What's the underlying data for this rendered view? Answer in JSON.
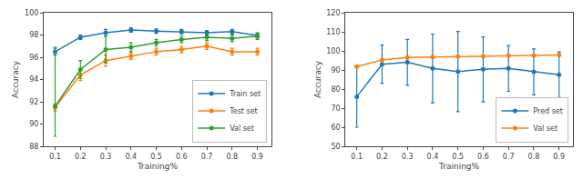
{
  "chart_data": [
    {
      "type": "line",
      "x": [
        0.1,
        0.2,
        0.3,
        0.4,
        0.5,
        0.6,
        0.7,
        0.8,
        0.9
      ],
      "xlabel": "Training%",
      "ylabel": "Accuracy",
      "xlim": [
        0.055,
        0.955
      ],
      "xticks": [
        0.1,
        0.2,
        0.3,
        0.4,
        0.5,
        0.6,
        0.7,
        0.8,
        0.9
      ],
      "ylim": [
        88,
        100
      ],
      "yticks": [
        88,
        90,
        92,
        94,
        96,
        98,
        100
      ],
      "grid": false,
      "legend": "lower right",
      "series": [
        {
          "name": "Train set",
          "color": "#1f77b4",
          "marker": "circle",
          "values": [
            96.5,
            97.8,
            98.2,
            98.45,
            98.35,
            98.3,
            98.2,
            98.3,
            97.95
          ],
          "errors": [
            0.3,
            0.2,
            0.3,
            0.2,
            0.2,
            0.2,
            0.2,
            0.2,
            0.2
          ]
        },
        {
          "name": "Test set",
          "color": "#ff7f0e",
          "marker": "circle",
          "values": [
            91.5,
            94.4,
            95.7,
            96.1,
            96.5,
            96.7,
            97.0,
            96.5,
            96.5
          ],
          "errors": [
            0.3,
            0.5,
            0.5,
            0.3,
            0.3,
            0.3,
            0.3,
            0.3,
            0.3
          ]
        },
        {
          "name": "Val set",
          "color": "#2ca02c",
          "marker": "circle",
          "values": [
            91.6,
            94.9,
            96.7,
            96.9,
            97.3,
            97.6,
            97.8,
            97.7,
            97.9
          ],
          "errors_up": [
            5.3,
            0.8,
            1.2,
            0.4,
            0.3,
            0.3,
            0.3,
            0.3,
            0.3
          ],
          "errors_down": [
            2.7,
            0.8,
            1.2,
            0.4,
            0.3,
            0.3,
            0.3,
            0.3,
            0.3
          ]
        }
      ]
    },
    {
      "type": "line",
      "x": [
        0.1,
        0.2,
        0.3,
        0.4,
        0.5,
        0.6,
        0.7,
        0.8,
        0.9
      ],
      "xlabel": "Training%",
      "ylabel": "Accuracy",
      "xlim": [
        0.055,
        0.955
      ],
      "xticks": [
        0.1,
        0.2,
        0.3,
        0.4,
        0.5,
        0.6,
        0.7,
        0.8,
        0.9
      ],
      "ylim": [
        50,
        120
      ],
      "yticks": [
        50,
        60,
        70,
        80,
        90,
        100,
        110,
        120
      ],
      "grid": false,
      "legend": "lower right",
      "series": [
        {
          "name": "Pred set",
          "color": "#1f77b4",
          "marker": "circle",
          "values": [
            76.0,
            93.0,
            94.0,
            90.8,
            89.2,
            90.3,
            90.8,
            89.0,
            87.5
          ],
          "errors_up": [
            16.0,
            10.0,
            12.0,
            18.0,
            21.0,
            17.0,
            12.0,
            12.0,
            12.0
          ],
          "errors_down": [
            16.0,
            10.0,
            12.0,
            18.0,
            21.0,
            17.0,
            12.0,
            12.0,
            12.0
          ]
        },
        {
          "name": "Val set",
          "color": "#ff7f0e",
          "marker": "circle",
          "values": [
            91.8,
            95.2,
            96.6,
            96.8,
            97.0,
            97.2,
            97.5,
            97.6,
            97.8
          ],
          "errors": [
            0.5,
            0.5,
            0.5,
            0.3,
            0.3,
            0.3,
            0.3,
            0.3,
            0.3
          ]
        }
      ]
    }
  ]
}
